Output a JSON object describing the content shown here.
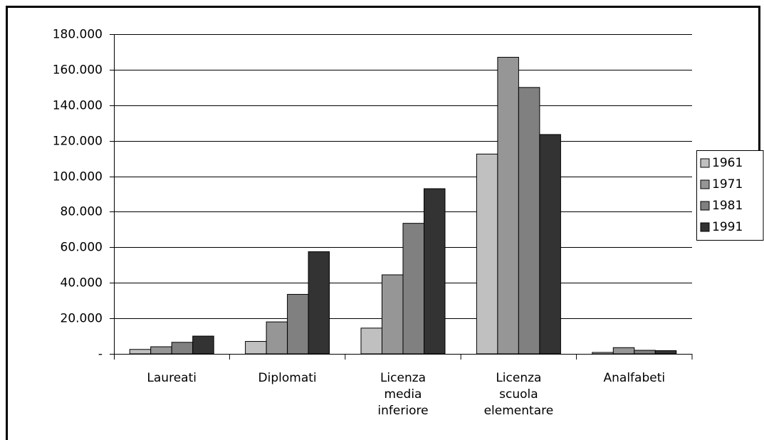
{
  "chart_data": {
    "type": "bar",
    "categories": [
      "Laureati",
      "Diplomati",
      "Licenza\nmedia\ninferiore",
      "Licenza\nscuola\nelementare",
      "Analfabeti"
    ],
    "series": [
      {
        "name": "1961",
        "color": "#c0c0c0",
        "values": [
          2500,
          7000,
          14500,
          112500,
          800
        ]
      },
      {
        "name": "1971",
        "color": "#969696",
        "values": [
          4000,
          18000,
          44500,
          167000,
          3500
        ]
      },
      {
        "name": "1981",
        "color": "#808080",
        "values": [
          6500,
          33500,
          73500,
          150000,
          2000
        ]
      },
      {
        "name": "1991",
        "color": "#333333",
        "values": [
          10000,
          57500,
          93000,
          123500,
          1800
        ]
      }
    ],
    "ylim": [
      0,
      180000
    ],
    "yticks": [
      {
        "value": 0,
        "label": "-"
      },
      {
        "value": 20000,
        "label": "20.000"
      },
      {
        "value": 40000,
        "label": "40.000"
      },
      {
        "value": 60000,
        "label": "60.000"
      },
      {
        "value": 80000,
        "label": "80.000"
      },
      {
        "value": 100000,
        "label": "100.000"
      },
      {
        "value": 120000,
        "label": "120.000"
      },
      {
        "value": 140000,
        "label": "140.000"
      },
      {
        "value": 160000,
        "label": "160.000"
      },
      {
        "value": 180000,
        "label": "180.000"
      }
    ],
    "grid": true,
    "legend": "right"
  }
}
